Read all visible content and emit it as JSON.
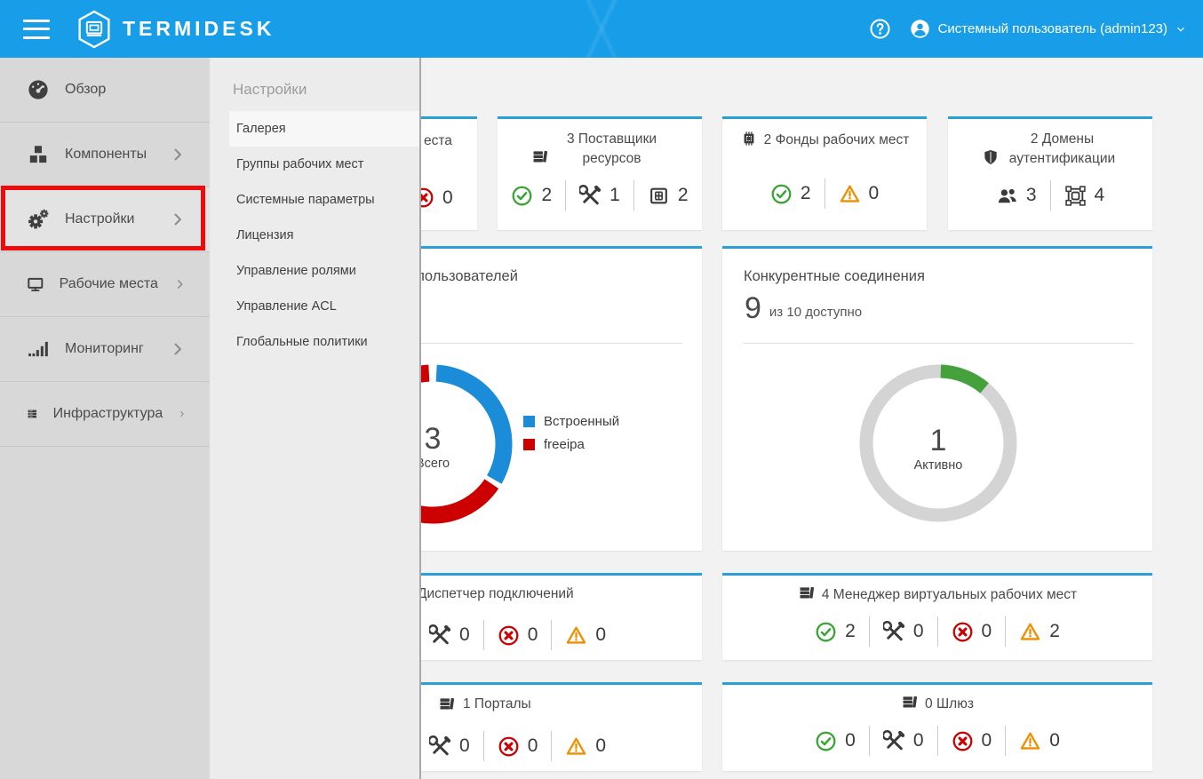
{
  "header": {
    "brand": "TERMIDESK",
    "user": "Системный пользователь (admin123)"
  },
  "sidebar": {
    "items": [
      {
        "label": "Обзор",
        "icon": "gauge",
        "has_submenu": false,
        "active": false
      },
      {
        "label": "Компоненты",
        "icon": "cubes",
        "has_submenu": true,
        "active": false
      },
      {
        "label": "Настройки",
        "icon": "gears",
        "has_submenu": true,
        "active": true,
        "annotated": true
      },
      {
        "label": "Рабочие места",
        "icon": "monitor",
        "has_submenu": true,
        "active": false
      },
      {
        "label": "Мониторинг",
        "icon": "chart-bars",
        "has_submenu": true,
        "active": false
      },
      {
        "label": "Инфраструктура",
        "icon": "servers",
        "has_submenu": true,
        "active": false
      }
    ]
  },
  "submenu": {
    "title": "Настройки",
    "items": [
      {
        "label": "Галерея",
        "active": true
      },
      {
        "label": "Группы рабочих мест",
        "active": false
      },
      {
        "label": "Системные параметры",
        "active": false
      },
      {
        "label": "Лицензия",
        "active": false
      },
      {
        "label": "Управление ролями",
        "active": false
      },
      {
        "label": "Управление ACL",
        "active": false
      },
      {
        "label": "Глобальные политики",
        "active": false
      }
    ]
  },
  "cards": {
    "workplaces_partial": {
      "title_fragment": "еста",
      "stats": [
        {
          "icon": "error-circle",
          "value": "0"
        }
      ]
    },
    "resource_providers": {
      "title": "3 Поставщики ресурсов",
      "stats": [
        {
          "icon": "check-circle",
          "value": "2"
        },
        {
          "icon": "tools",
          "value": "1"
        },
        {
          "icon": "grid",
          "value": "2"
        }
      ]
    },
    "desktop_pools": {
      "title": "2 Фонды рабочих мест",
      "stats": [
        {
          "icon": "check-circle",
          "value": "2"
        },
        {
          "icon": "warning",
          "value": "0"
        }
      ]
    },
    "auth_domains": {
      "title": "2 Домены аутентификации",
      "stats": [
        {
          "icon": "users",
          "value": "3"
        },
        {
          "icon": "object-group",
          "value": "4"
        }
      ]
    },
    "connection_manager": {
      "title_fragment": "Диспетчер подключений",
      "stats": [
        {
          "icon": "tools",
          "value": "0"
        },
        {
          "icon": "error-circle",
          "value": "0"
        },
        {
          "icon": "warning",
          "value": "0"
        }
      ]
    },
    "vdi_manager": {
      "title": "4 Менеджер виртуальных рабочих мест",
      "stats": [
        {
          "icon": "check-circle",
          "value": "2"
        },
        {
          "icon": "tools",
          "value": "0"
        },
        {
          "icon": "error-circle",
          "value": "0"
        },
        {
          "icon": "warning",
          "value": "2"
        }
      ]
    },
    "portals": {
      "title": "1 Порталы",
      "stats": [
        {
          "icon": "tools",
          "value": "0"
        },
        {
          "icon": "error-circle",
          "value": "0"
        },
        {
          "icon": "warning",
          "value": "0"
        }
      ]
    },
    "gateway": {
      "title": "0 Шлюз",
      "stats": [
        {
          "icon": "check-circle",
          "value": "0"
        },
        {
          "icon": "tools",
          "value": "0"
        },
        {
          "icon": "error-circle",
          "value": "0"
        },
        {
          "icon": "warning",
          "value": "0"
        }
      ]
    }
  },
  "chart_data": [
    {
      "type": "pie",
      "donut": true,
      "title_fragment": "пользователей",
      "total": 3,
      "center_label": "3",
      "center_caption": "Всего",
      "legend_position": "right",
      "series": [
        {
          "name": "Встроенный",
          "value": 1,
          "color": "#1a8cd8"
        },
        {
          "name": "freeipa",
          "value": 2,
          "color": "#cc0000"
        }
      ],
      "render": {
        "radius": 80,
        "stroke": 19,
        "segments": [
          {
            "color": "#1a8cd8",
            "start": 3,
            "end": 120
          },
          {
            "color": "#cc0000",
            "start": 124,
            "end": 357
          }
        ]
      }
    },
    {
      "type": "pie",
      "donut": true,
      "title": "Конкурентные соединения",
      "available_label": "9",
      "availability_caption": "из 10 доступно",
      "total": 10,
      "active": 1,
      "center_label": "1",
      "center_caption": "Активно",
      "series": [
        {
          "name": "Активно",
          "value": 1,
          "color": "#44a13c"
        }
      ],
      "render": {
        "radius": 81,
        "stroke": 15,
        "track_color": "#d4d4d4",
        "segments": [
          {
            "color": "#44a13c",
            "start": 2,
            "end": 40
          }
        ]
      }
    }
  ],
  "colors": {
    "topbar": "#189ee9",
    "sidebar_bg": "#d8d8d8",
    "submenu_bg": "#ececec",
    "card_accent": "#2b9fd8",
    "ok_green": "#3aa435",
    "error_red": "#cc0000",
    "warning_orange": "#ee8f00",
    "chart_blue": "#1a8cd8",
    "chart_red": "#cc0000",
    "chart_green": "#44a13c",
    "ring_gray": "#d4d4d4",
    "annotation_red": "#ee0b0b"
  }
}
